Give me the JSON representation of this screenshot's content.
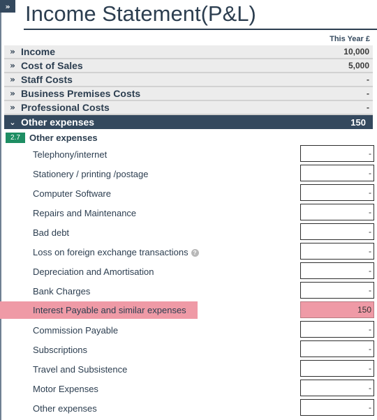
{
  "page": {
    "toggle_glyph": "»",
    "title": "Income Statement(P&L)",
    "column_header": "This Year £"
  },
  "sections": [
    {
      "chevron": "»",
      "label": "Income",
      "amount": "10,000"
    },
    {
      "chevron": "»",
      "label": "Cost of Sales",
      "amount": "5,000"
    },
    {
      "chevron": "»",
      "label": "Staff Costs",
      "amount": "-"
    },
    {
      "chevron": "»",
      "label": "Business Premises Costs",
      "amount": "-"
    },
    {
      "chevron": "»",
      "label": "Professional Costs",
      "amount": "-"
    }
  ],
  "open_section": {
    "chevron": "⌄",
    "label": "Other expenses",
    "amount": "150",
    "sub_badge": "2.7",
    "sub_title": "Other expenses",
    "items": [
      {
        "label": "Telephony/internet",
        "value": "-"
      },
      {
        "label": "Stationery / printing /postage",
        "value": "-"
      },
      {
        "label": "Computer Software",
        "value": "-"
      },
      {
        "label": "Repairs and Maintenance",
        "value": "-"
      },
      {
        "label": "Bad debt",
        "value": "-"
      },
      {
        "label": "Loss on foreign exchange transactions",
        "value": "-",
        "help": "?"
      },
      {
        "label": "Depreciation and Amortisation",
        "value": "-"
      },
      {
        "label": "Bank Charges",
        "value": "-"
      },
      {
        "label": "Interest Payable and similar expenses",
        "value": "150",
        "highlighted": true
      },
      {
        "label": "Commission Payable",
        "value": "-"
      },
      {
        "label": "Subscriptions",
        "value": "-"
      },
      {
        "label": "Travel and Subsistence",
        "value": "-"
      },
      {
        "label": "Motor Expenses",
        "value": "-"
      },
      {
        "label": "Other expenses",
        "value": "-"
      }
    ]
  },
  "colors": {
    "header_dark": "#34495e",
    "badge_green": "#1e8e63",
    "highlight_pink": "#ef9aa6",
    "section_grey": "#ececec"
  }
}
